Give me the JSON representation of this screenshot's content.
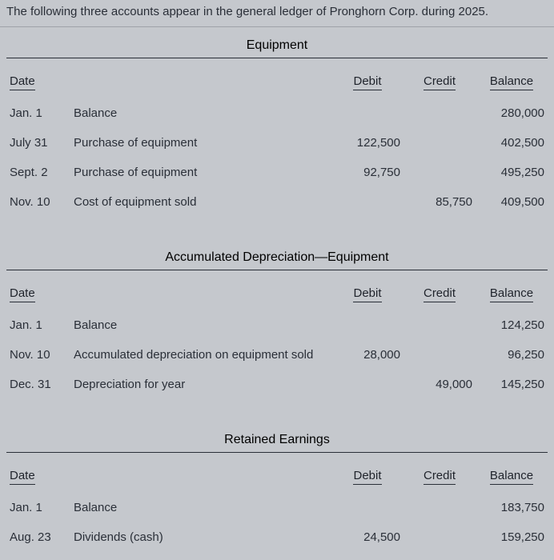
{
  "intro": "The following three accounts appear in the general ledger of Pronghorn Corp. during 2025.",
  "columns": {
    "date": "Date",
    "debit": "Debit",
    "credit": "Credit",
    "balance": "Balance"
  },
  "colors": {
    "background": "#c5c8cd",
    "text": "#2a2f38",
    "rule": "#2a2f38"
  },
  "font": {
    "family": "system-ui",
    "size_body_pt": 11,
    "size_title_pt": 12
  },
  "ledgers": [
    {
      "title": "Equipment",
      "rows": [
        {
          "date": "Jan. 1",
          "desc": "Balance",
          "debit": "",
          "credit": "",
          "balance": "280,000"
        },
        {
          "date": "July 31",
          "desc": "Purchase of equipment",
          "debit": "122,500",
          "credit": "",
          "balance": "402,500"
        },
        {
          "date": "Sept. 2",
          "desc": "Purchase of equipment",
          "debit": "92,750",
          "credit": "",
          "balance": "495,250"
        },
        {
          "date": "Nov. 10",
          "desc": "Cost of equipment sold",
          "debit": "",
          "credit": "85,750",
          "balance": "409,500"
        }
      ]
    },
    {
      "title": "Accumulated Depreciation—Equipment",
      "rows": [
        {
          "date": "Jan. 1",
          "desc": "Balance",
          "debit": "",
          "credit": "",
          "balance": "124,250"
        },
        {
          "date": "Nov. 10",
          "desc": "Accumulated depreciation on equipment sold",
          "debit": "28,000",
          "credit": "",
          "balance": "96,250"
        },
        {
          "date": "Dec. 31",
          "desc": "Depreciation for year",
          "debit": "",
          "credit": "49,000",
          "balance": "145,250"
        }
      ]
    },
    {
      "title": "Retained Earnings",
      "rows": [
        {
          "date": "Jan. 1",
          "desc": "Balance",
          "debit": "",
          "credit": "",
          "balance": "183,750"
        },
        {
          "date": "Aug. 23",
          "desc": "Dividends (cash)",
          "debit": "24,500",
          "credit": "",
          "balance": "159,250"
        }
      ]
    }
  ]
}
